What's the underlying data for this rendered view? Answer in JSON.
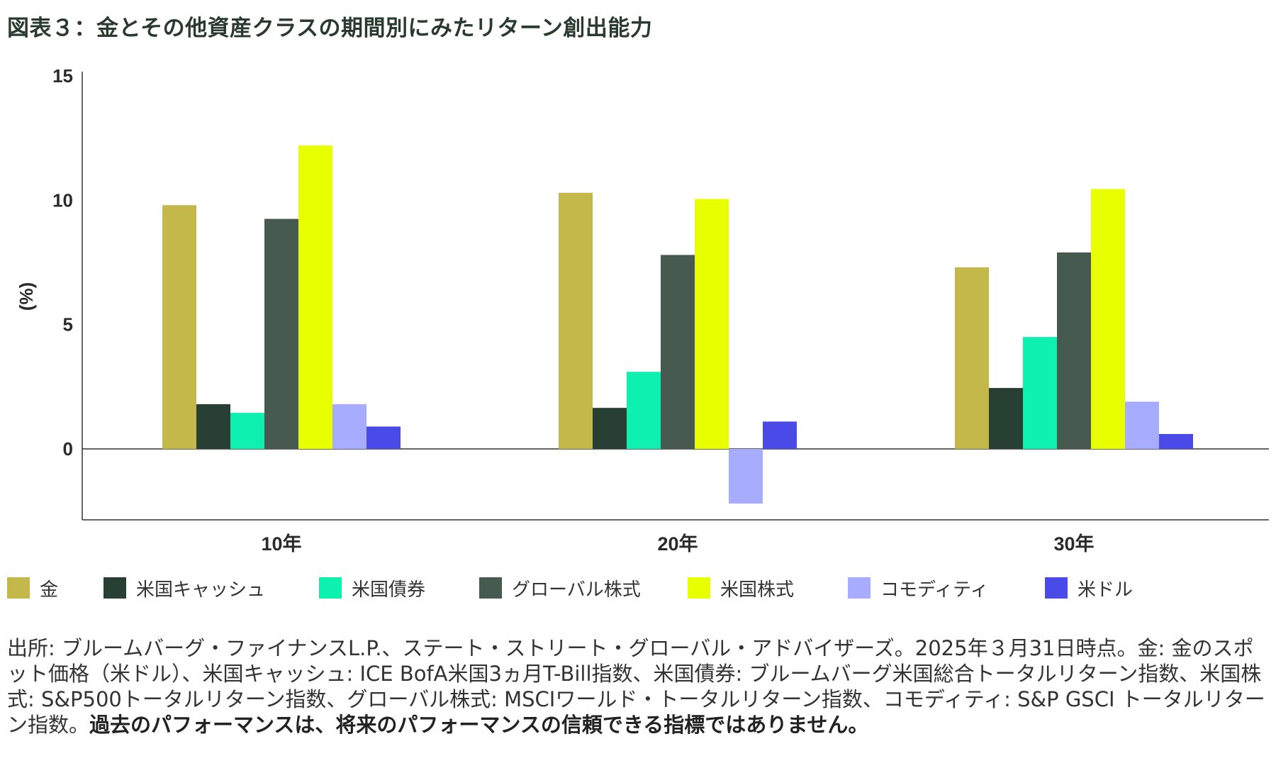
{
  "title": "図表３：金とその他資産クラスの期間別にみたリターン創出能力",
  "chart_data": {
    "type": "bar",
    "ylabel": "(%)",
    "ylim": [
      -2.8,
      15
    ],
    "yticks": [
      0,
      5,
      10,
      15
    ],
    "categories": [
      "10年",
      "20年",
      "30年"
    ],
    "series": [
      {
        "name": "金",
        "color": "#c4b84b",
        "values": [
          9.8,
          10.3,
          7.3
        ]
      },
      {
        "name": "米国キャッシュ",
        "color": "#283f33",
        "values": [
          1.8,
          1.65,
          2.45
        ]
      },
      {
        "name": "米国債券",
        "color": "#0ef0b0",
        "values": [
          1.45,
          3.1,
          4.5
        ]
      },
      {
        "name": "グローバル株式",
        "color": "#475a50",
        "values": [
          9.25,
          7.8,
          7.9
        ]
      },
      {
        "name": "米国株式",
        "color": "#e8ff00",
        "values": [
          12.2,
          10.05,
          10.45
        ]
      },
      {
        "name": "コモディティ",
        "color": "#a8acff",
        "values": [
          1.8,
          -2.2,
          1.9
        ]
      },
      {
        "name": "米ドル",
        "color": "#4a4ae8",
        "values": [
          0.9,
          1.1,
          0.6
        ]
      }
    ],
    "legend_position": "bottom",
    "grid": false
  },
  "source": {
    "text": "出所: ブルームバーグ・ファイナンスL.P.、ステート・ストリート・グローバル・アドバイザーズ。2025年３月31日時点。金: 金のスポット価格（米ドル）、米国キャッシュ: ICE BofA米国3ヵ月T-Bill指数、米国債券: ブルームバーグ米国総合トータルリターン指数、米国株式: S&P500トータルリターン指数、グローバル株式: MSCIワールド・トータルリターン指数、コモディティ: S&P GSCI トータルリターン指数。",
    "disclaimer": "過去のパフォーマンスは、将来のパフォーマンスの信頼できる指標ではありません。"
  }
}
